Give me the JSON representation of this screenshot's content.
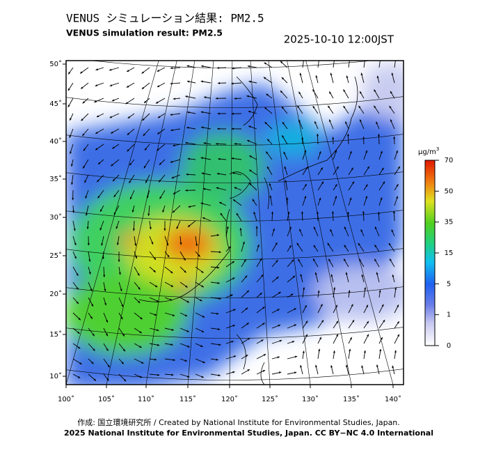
{
  "header": {
    "title": "VENUS シミュレーション結果: PM2.5",
    "subtitle": "VENUS simulation result: PM2.5",
    "timestamp": "2025-10-10 12:00JST"
  },
  "map": {
    "lat_labels": [
      "50˚",
      "45˚",
      "40˚",
      "35˚",
      "30˚",
      "25˚",
      "20˚",
      "15˚",
      "10˚"
    ],
    "lon_labels": [
      "100˚",
      "105˚",
      "110˚",
      "115˚",
      "120˚",
      "125˚",
      "130˚",
      "135˚",
      "140˚"
    ]
  },
  "colorbar": {
    "unit": "μg/m",
    "unit_sup": "3",
    "labels": [
      "70",
      "50",
      "35",
      "15",
      "5",
      "1",
      "0"
    ]
  },
  "footer": {
    "credit": "作成: 国立環境研究所 / Created by National Institute for Environmental Studies, Japan.",
    "license": "2025 National Institute for Environmental Studies, Japan. CC BY−NC 4.0 International"
  }
}
